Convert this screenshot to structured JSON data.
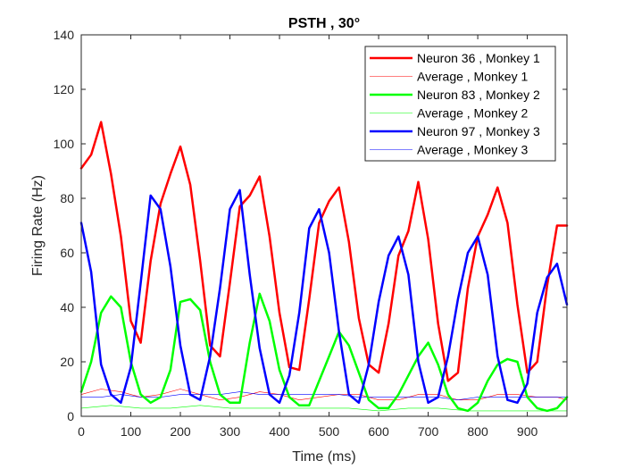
{
  "chart_data": {
    "type": "line",
    "title": "PSTH , 30°",
    "xlabel": "Time (ms)",
    "ylabel": "Firing Rate (Hz)",
    "xlim": [
      0,
      980
    ],
    "ylim": [
      0,
      140
    ],
    "xticks": [
      0,
      100,
      200,
      300,
      400,
      500,
      600,
      700,
      800,
      900
    ],
    "yticks": [
      0,
      20,
      40,
      60,
      80,
      100,
      120,
      140
    ],
    "grid": false,
    "legend_position": "top-right",
    "series": [
      {
        "name": "Neuron 36 , Monkey 1",
        "color": "#ff0000",
        "width": "thick",
        "x": [
          0,
          20,
          40,
          60,
          80,
          100,
          120,
          140,
          160,
          180,
          200,
          220,
          240,
          260,
          280,
          300,
          320,
          340,
          360,
          380,
          400,
          420,
          440,
          460,
          480,
          500,
          520,
          540,
          560,
          580,
          600,
          620,
          640,
          660,
          680,
          700,
          720,
          740,
          760,
          780,
          800,
          820,
          840,
          860,
          880,
          900,
          920,
          940,
          960,
          980
        ],
        "y": [
          91,
          96,
          108,
          89,
          66,
          35,
          27,
          57,
          78,
          89,
          99,
          85,
          57,
          26,
          22,
          49,
          77,
          81,
          88,
          66,
          38,
          18,
          17,
          43,
          71,
          79,
          84,
          64,
          36,
          19,
          16,
          34,
          59,
          68,
          86,
          65,
          34,
          13,
          16,
          47,
          66,
          74,
          84,
          71,
          41,
          16,
          20,
          48,
          70,
          70
        ]
      },
      {
        "name": "Average , Monkey 1",
        "color": "#ff0000",
        "width": "thin",
        "x": [
          0,
          40,
          80,
          120,
          160,
          200,
          240,
          280,
          320,
          360,
          400,
          440,
          480,
          520,
          560,
          600,
          640,
          680,
          720,
          760,
          800,
          840,
          880,
          920,
          960,
          980
        ],
        "y": [
          8,
          10,
          9,
          7,
          8,
          10,
          8,
          6,
          7,
          9,
          8,
          6,
          7,
          8,
          8,
          6,
          6,
          8,
          8,
          6,
          6,
          8,
          8,
          7,
          7,
          6
        ]
      },
      {
        "name": "Neuron 83 , Monkey 2",
        "color": "#00ff00",
        "width": "thick",
        "x": [
          0,
          20,
          40,
          60,
          80,
          100,
          120,
          140,
          160,
          180,
          200,
          220,
          240,
          260,
          280,
          300,
          320,
          340,
          360,
          380,
          400,
          420,
          440,
          460,
          480,
          500,
          520,
          540,
          560,
          580,
          600,
          620,
          640,
          660,
          680,
          700,
          720,
          740,
          760,
          780,
          800,
          820,
          840,
          860,
          880,
          900,
          920,
          940,
          960,
          980
        ],
        "y": [
          9,
          20,
          38,
          44,
          40,
          20,
          8,
          5,
          7,
          17,
          42,
          43,
          39,
          20,
          8,
          5,
          5,
          27,
          45,
          35,
          17,
          7,
          4,
          4,
          13,
          22,
          31,
          26,
          16,
          6,
          3,
          3,
          8,
          15,
          22,
          27,
          19,
          8,
          3,
          2,
          5,
          13,
          19,
          21,
          20,
          7,
          3,
          2,
          3,
          7
        ]
      },
      {
        "name": "Average , Monkey 2",
        "color": "#00ff00",
        "width": "thin",
        "x": [
          0,
          60,
          120,
          180,
          240,
          300,
          360,
          420,
          480,
          540,
          600,
          660,
          720,
          780,
          840,
          900,
          960,
          980
        ],
        "y": [
          3,
          4,
          3,
          3,
          4,
          3,
          3,
          3,
          3,
          3,
          2,
          3,
          3,
          2,
          2,
          2,
          2,
          2
        ]
      },
      {
        "name": "Neuron 97 , Monkey 3",
        "color": "#0000ff",
        "width": "thick",
        "x": [
          0,
          20,
          40,
          60,
          80,
          100,
          120,
          140,
          160,
          180,
          200,
          220,
          240,
          260,
          280,
          300,
          320,
          340,
          360,
          380,
          400,
          420,
          440,
          460,
          480,
          500,
          520,
          540,
          560,
          580,
          600,
          620,
          640,
          660,
          680,
          700,
          720,
          740,
          760,
          780,
          800,
          820,
          840,
          860,
          880,
          900,
          920,
          940,
          960,
          980
        ],
        "y": [
          71,
          53,
          19,
          8,
          5,
          18,
          49,
          81,
          76,
          55,
          26,
          8,
          6,
          22,
          47,
          76,
          83,
          52,
          25,
          8,
          5,
          15,
          38,
          69,
          76,
          60,
          31,
          8,
          5,
          19,
          42,
          59,
          66,
          52,
          20,
          5,
          7,
          22,
          43,
          60,
          66,
          52,
          22,
          6,
          5,
          12,
          38,
          51,
          56,
          41
        ]
      },
      {
        "name": "Average , Monkey 3",
        "color": "#0000ff",
        "width": "thin",
        "x": [
          0,
          40,
          80,
          120,
          160,
          200,
          240,
          280,
          320,
          360,
          400,
          440,
          480,
          520,
          560,
          600,
          640,
          680,
          720,
          760,
          800,
          840,
          880,
          920,
          960,
          980
        ],
        "y": [
          7,
          7,
          8,
          7,
          7,
          8,
          8,
          8,
          9,
          8,
          8,
          8,
          8,
          8,
          7,
          7,
          7,
          7,
          7,
          6,
          7,
          7,
          7,
          7,
          7,
          7
        ]
      }
    ]
  }
}
